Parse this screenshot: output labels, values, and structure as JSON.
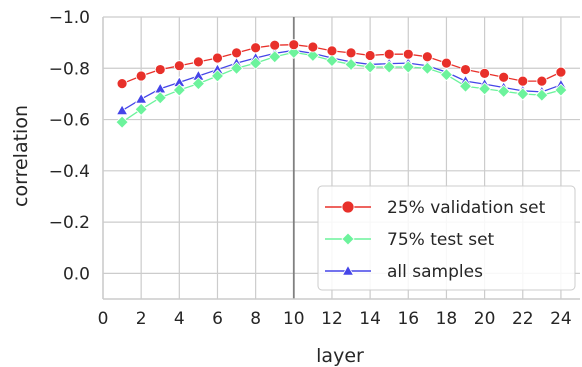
{
  "chart_data": {
    "type": "line",
    "xlabel": "layer",
    "ylabel": "correlation",
    "xlim": [
      0,
      25
    ],
    "ylim": [
      0.1,
      -1.0
    ],
    "y_axis_inverted": true,
    "x_ticks": [
      0,
      2,
      4,
      6,
      8,
      10,
      12,
      14,
      16,
      18,
      20,
      22,
      24
    ],
    "x_tick_labels": [
      "0",
      "2",
      "4",
      "6",
      "8",
      "10",
      "12",
      "14",
      "16",
      "18",
      "20",
      "22",
      "24"
    ],
    "y_ticks": [
      -1.0,
      -0.8,
      -0.6,
      -0.4,
      -0.2,
      0.0
    ],
    "y_tick_labels": [
      "−1.0",
      "−0.8",
      "−0.6",
      "−0.4",
      "−0.2",
      "0.0"
    ],
    "grid": true,
    "vertical_reference_line": 10,
    "legend_position": "lower-right",
    "x": [
      1,
      2,
      3,
      4,
      5,
      6,
      7,
      8,
      9,
      10,
      11,
      12,
      13,
      14,
      15,
      16,
      17,
      18,
      19,
      20,
      21,
      22,
      23,
      24
    ],
    "series": [
      {
        "name": "25% validation set",
        "color": "#e8302a",
        "marker": "circle",
        "values": [
          -0.74,
          -0.77,
          -0.795,
          -0.81,
          -0.825,
          -0.84,
          -0.86,
          -0.88,
          -0.89,
          -0.892,
          -0.883,
          -0.868,
          -0.86,
          -0.85,
          -0.855,
          -0.855,
          -0.845,
          -0.82,
          -0.795,
          -0.78,
          -0.765,
          -0.75,
          -0.75,
          -0.785
        ]
      },
      {
        "name": "75% test set",
        "color": "#6cf39c",
        "marker": "diamond",
        "values": [
          -0.59,
          -0.64,
          -0.685,
          -0.715,
          -0.74,
          -0.77,
          -0.8,
          -0.82,
          -0.845,
          -0.862,
          -0.85,
          -0.83,
          -0.815,
          -0.805,
          -0.805,
          -0.805,
          -0.8,
          -0.775,
          -0.73,
          -0.72,
          -0.71,
          -0.7,
          -0.695,
          -0.715
        ]
      },
      {
        "name": "all samples",
        "color": "#4545e8",
        "marker": "triangle",
        "values": [
          -0.635,
          -0.68,
          -0.72,
          -0.745,
          -0.77,
          -0.795,
          -0.82,
          -0.84,
          -0.858,
          -0.87,
          -0.858,
          -0.84,
          -0.825,
          -0.815,
          -0.818,
          -0.82,
          -0.81,
          -0.785,
          -0.75,
          -0.738,
          -0.725,
          -0.712,
          -0.708,
          -0.735
        ]
      }
    ]
  }
}
